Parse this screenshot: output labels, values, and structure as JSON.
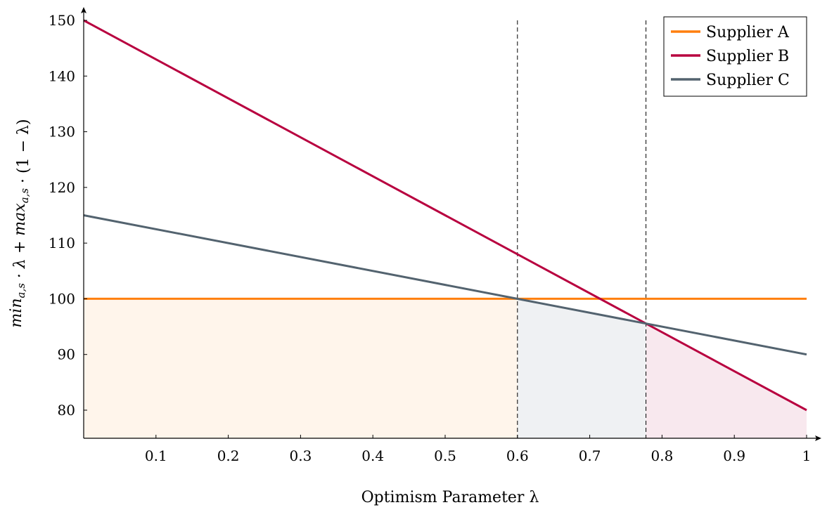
{
  "chart_data": {
    "type": "line",
    "title": "",
    "xlabel": "Optimism Parameter λ",
    "ylabel": "min_{a,s} · λ + max_{a,s} · (1 − λ)",
    "xlim": [
      0,
      1
    ],
    "ylim": [
      75,
      150
    ],
    "x_ticks": [
      "0.1",
      "0.2",
      "0.3",
      "0.4",
      "0.5",
      "0.6",
      "0.7",
      "0.8",
      "0.9",
      "1"
    ],
    "y_ticks": [
      "80",
      "90",
      "100",
      "110",
      "120",
      "130",
      "140",
      "150"
    ],
    "grid": false,
    "legend_position": "top-right",
    "series": [
      {
        "name": "Supplier A",
        "color": "#ff7f0e",
        "x": [
          0,
          1
        ],
        "y": [
          100,
          100
        ]
      },
      {
        "name": "Supplier B",
        "color": "#b8003f",
        "x": [
          0,
          1
        ],
        "y": [
          150,
          80
        ]
      },
      {
        "name": "Supplier C",
        "color": "#53636f",
        "x": [
          0,
          1
        ],
        "y": [
          115,
          90
        ]
      }
    ],
    "vertical_dashed_lines": [
      0.6,
      0.7778
    ],
    "shaded_regions": [
      {
        "series": "Supplier A",
        "from": 0,
        "to": 0.6,
        "color": "#fff5eb"
      },
      {
        "series": "Supplier C",
        "from": 0.6,
        "to": 0.7778,
        "color": "#eff1f3"
      },
      {
        "series": "Supplier B",
        "from": 0.7778,
        "to": 1,
        "color": "#f8e8ee"
      }
    ]
  }
}
